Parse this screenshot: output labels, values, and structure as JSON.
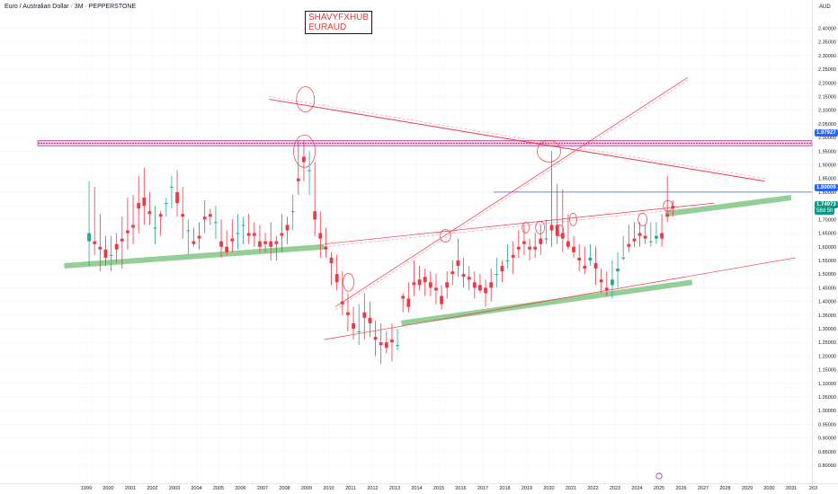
{
  "header": {
    "title": "Euro / Australian Dollar · 3M · PEPPERSTONE"
  },
  "watermark": {
    "line1": "SHAVYFXHUB",
    "line2": "EURAUD"
  },
  "axis": {
    "currency": "AUD"
  },
  "badges": {
    "level_upper": "1.97927",
    "level_mid": "1.80009",
    "last_price": "1.74973",
    "countdown": "58d 5h"
  },
  "colors": {
    "up": "#26a69a",
    "down": "#f23645",
    "resistance": "#f23645",
    "support": "#4caf50",
    "level": "#2962ff",
    "zone": "#e91e63"
  },
  "chart_data": {
    "type": "candlestick",
    "title": "Euro / Australian Dollar · 3M · PEPPERSTONE",
    "ylim": [
      0.78,
      2.44
    ],
    "y_ticks": [
      "0.80000",
      "0.85000",
      "0.90000",
      "0.95000",
      "1.00000",
      "1.05000",
      "1.10000",
      "1.15000",
      "1.20000",
      "1.25000",
      "1.30000",
      "1.35000",
      "1.40000",
      "1.45000",
      "1.50000",
      "1.55000",
      "1.60000",
      "1.65000",
      "1.70000",
      "1.75000",
      "1.80000",
      "1.85000",
      "1.90000",
      "1.95000",
      "2.00000",
      "2.05000",
      "2.10000",
      "2.15000",
      "2.20000",
      "2.25000",
      "2.30000",
      "2.35000",
      "2.40000"
    ],
    "x_ticks": [
      "1999",
      "2000",
      "2001",
      "2002",
      "2003",
      "2004",
      "2005",
      "2006",
      "2007",
      "2008",
      "2009",
      "2010",
      "2011",
      "2012",
      "2013",
      "2014",
      "2015",
      "2016",
      "2017",
      "2018",
      "2019",
      "2020",
      "2021",
      "2022",
      "2023",
      "2024",
      "2025",
      "2026",
      "2027",
      "2028",
      "2029",
      "2030",
      "2031",
      "203"
    ],
    "x_range": [
      1999.0,
      2031.2
    ],
    "candles": [
      [
        1999.0,
        1.62,
        1.84,
        1.65,
        1.53
      ],
      [
        1999.25,
        1.62,
        1.82,
        1.61,
        1.57
      ],
      [
        1999.5,
        1.6,
        1.72,
        1.59,
        1.51
      ],
      [
        1999.75,
        1.59,
        1.64,
        1.56,
        1.53
      ],
      [
        2000.0,
        1.57,
        1.64,
        1.57,
        1.51
      ],
      [
        2000.25,
        1.61,
        1.65,
        1.59,
        1.54
      ],
      [
        2000.5,
        1.63,
        1.71,
        1.62,
        1.52
      ],
      [
        2000.75,
        1.66,
        1.78,
        1.65,
        1.59
      ],
      [
        2001.0,
        1.68,
        1.79,
        1.67,
        1.61
      ],
      [
        2001.25,
        1.76,
        1.86,
        1.74,
        1.65
      ],
      [
        2001.5,
        1.78,
        1.89,
        1.75,
        1.68
      ],
      [
        2001.75,
        1.73,
        1.8,
        1.72,
        1.68
      ],
      [
        2002.0,
        1.67,
        1.75,
        1.67,
        1.61
      ],
      [
        2002.25,
        1.72,
        1.73,
        1.71,
        1.64
      ],
      [
        2002.5,
        1.76,
        1.78,
        1.76,
        1.71
      ],
      [
        2002.75,
        1.82,
        1.86,
        1.82,
        1.74
      ],
      [
        2003.0,
        1.8,
        1.88,
        1.76,
        1.71
      ],
      [
        2003.25,
        1.72,
        1.82,
        1.71,
        1.63
      ],
      [
        2003.5,
        1.66,
        1.7,
        1.66,
        1.57
      ],
      [
        2003.75,
        1.62,
        1.67,
        1.61,
        1.6
      ],
      [
        2004.0,
        1.64,
        1.69,
        1.63,
        1.59
      ],
      [
        2004.25,
        1.71,
        1.77,
        1.7,
        1.65
      ],
      [
        2004.5,
        1.72,
        1.74,
        1.71,
        1.68
      ],
      [
        2004.75,
        1.69,
        1.75,
        1.69,
        1.63
      ],
      [
        2005.0,
        1.62,
        1.7,
        1.6,
        1.56
      ],
      [
        2005.25,
        1.6,
        1.66,
        1.58,
        1.57
      ],
      [
        2005.5,
        1.63,
        1.7,
        1.62,
        1.58
      ],
      [
        2005.75,
        1.65,
        1.72,
        1.65,
        1.59
      ],
      [
        2006.0,
        1.68,
        1.71,
        1.68,
        1.61
      ],
      [
        2006.25,
        1.65,
        1.72,
        1.64,
        1.61
      ],
      [
        2006.5,
        1.65,
        1.69,
        1.64,
        1.6
      ],
      [
        2006.75,
        1.62,
        1.68,
        1.6,
        1.58
      ],
      [
        2007.0,
        1.62,
        1.65,
        1.61,
        1.58
      ],
      [
        2007.25,
        1.62,
        1.69,
        1.6,
        1.55
      ],
      [
        2007.5,
        1.62,
        1.64,
        1.61,
        1.55
      ],
      [
        2007.75,
        1.65,
        1.72,
        1.64,
        1.58
      ],
      [
        2008.0,
        1.68,
        1.71,
        1.66,
        1.61
      ],
      [
        2008.25,
        1.73,
        1.79,
        1.73,
        1.66
      ],
      [
        2008.5,
        1.85,
        1.99,
        1.84,
        1.79
      ],
      [
        2008.75,
        1.93,
        1.99,
        1.91,
        1.84
      ],
      [
        2009.0,
        1.88,
        1.95,
        1.88,
        1.79
      ],
      [
        2009.25,
        1.73,
        1.91,
        1.7,
        1.64
      ],
      [
        2009.5,
        1.65,
        1.73,
        1.63,
        1.56
      ],
      [
        2009.75,
        1.6,
        1.67,
        1.59,
        1.56
      ],
      [
        2010.0,
        1.56,
        1.58,
        1.54,
        1.46
      ],
      [
        2010.25,
        1.5,
        1.57,
        1.47,
        1.44
      ],
      [
        2010.5,
        1.4,
        1.51,
        1.39,
        1.35
      ],
      [
        2010.75,
        1.36,
        1.43,
        1.35,
        1.29
      ],
      [
        2011.0,
        1.32,
        1.38,
        1.3,
        1.26
      ],
      [
        2011.25,
        1.29,
        1.39,
        1.29,
        1.24
      ],
      [
        2011.5,
        1.36,
        1.43,
        1.34,
        1.26
      ],
      [
        2011.75,
        1.34,
        1.4,
        1.32,
        1.27
      ],
      [
        2012.0,
        1.27,
        1.33,
        1.26,
        1.2
      ],
      [
        2012.25,
        1.25,
        1.32,
        1.24,
        1.17
      ],
      [
        2012.5,
        1.25,
        1.29,
        1.23,
        1.21
      ],
      [
        2012.75,
        1.26,
        1.32,
        1.25,
        1.18
      ],
      [
        2013.0,
        1.24,
        1.3,
        1.24,
        1.22
      ],
      [
        2013.25,
        1.42,
        1.43,
        1.41,
        1.36
      ],
      [
        2013.5,
        1.41,
        1.47,
        1.38,
        1.36
      ],
      [
        2013.75,
        1.47,
        1.55,
        1.46,
        1.42
      ],
      [
        2014.0,
        1.48,
        1.53,
        1.46,
        1.44
      ],
      [
        2014.25,
        1.49,
        1.52,
        1.47,
        1.42
      ],
      [
        2014.5,
        1.47,
        1.51,
        1.45,
        1.42
      ],
      [
        2014.75,
        1.45,
        1.5,
        1.44,
        1.39
      ],
      [
        2015.0,
        1.42,
        1.46,
        1.39,
        1.37
      ],
      [
        2015.25,
        1.47,
        1.51,
        1.45,
        1.41
      ],
      [
        2015.5,
        1.51,
        1.55,
        1.5,
        1.46
      ],
      [
        2015.75,
        1.55,
        1.63,
        1.53,
        1.49
      ],
      [
        2016.0,
        1.5,
        1.56,
        1.49,
        1.45
      ],
      [
        2016.25,
        1.49,
        1.53,
        1.48,
        1.44
      ],
      [
        2016.5,
        1.47,
        1.51,
        1.45,
        1.41
      ],
      [
        2016.75,
        1.46,
        1.5,
        1.44,
        1.43
      ],
      [
        2017.0,
        1.45,
        1.48,
        1.43,
        1.38
      ],
      [
        2017.25,
        1.47,
        1.52,
        1.45,
        1.4
      ],
      [
        2017.5,
        1.5,
        1.56,
        1.5,
        1.45
      ],
      [
        2017.75,
        1.53,
        1.55,
        1.51,
        1.47
      ],
      [
        2018.0,
        1.55,
        1.61,
        1.55,
        1.52
      ],
      [
        2018.25,
        1.57,
        1.62,
        1.56,
        1.5
      ],
      [
        2018.5,
        1.6,
        1.66,
        1.59,
        1.56
      ],
      [
        2018.75,
        1.62,
        1.68,
        1.61,
        1.57
      ],
      [
        2019.0,
        1.6,
        1.63,
        1.59,
        1.55
      ],
      [
        2019.25,
        1.6,
        1.65,
        1.59,
        1.56
      ],
      [
        2019.5,
        1.63,
        1.68,
        1.61,
        1.57
      ],
      [
        2019.75,
        1.63,
        1.7,
        1.63,
        1.61
      ],
      [
        2020.0,
        1.68,
        1.95,
        1.66,
        1.6
      ],
      [
        2020.25,
        1.68,
        1.83,
        1.64,
        1.61
      ],
      [
        2020.5,
        1.65,
        1.81,
        1.63,
        1.58
      ],
      [
        2020.75,
        1.62,
        1.72,
        1.6,
        1.59
      ],
      [
        2021.0,
        1.6,
        1.64,
        1.58,
        1.56
      ],
      [
        2021.25,
        1.56,
        1.61,
        1.55,
        1.51
      ],
      [
        2021.5,
        1.53,
        1.6,
        1.52,
        1.5
      ],
      [
        2021.75,
        1.55,
        1.61,
        1.56,
        1.53
      ],
      [
        2022.0,
        1.54,
        1.6,
        1.52,
        1.46
      ],
      [
        2022.25,
        1.48,
        1.52,
        1.47,
        1.43
      ],
      [
        2022.5,
        1.45,
        1.51,
        1.44,
        1.42
      ],
      [
        2022.75,
        1.46,
        1.55,
        1.48,
        1.41
      ],
      [
        2023.0,
        1.51,
        1.58,
        1.52,
        1.45
      ],
      [
        2023.25,
        1.56,
        1.64,
        1.56,
        1.55
      ],
      [
        2023.5,
        1.61,
        1.68,
        1.6,
        1.58
      ],
      [
        2023.75,
        1.63,
        1.69,
        1.62,
        1.6
      ],
      [
        2024.0,
        1.65,
        1.69,
        1.64,
        1.6
      ],
      [
        2024.25,
        1.64,
        1.68,
        1.63,
        1.61
      ],
      [
        2024.5,
        1.62,
        1.69,
        1.62,
        1.6
      ],
      [
        2024.75,
        1.63,
        1.69,
        1.64,
        1.61
      ],
      [
        2025.0,
        1.65,
        1.72,
        1.63,
        1.6
      ],
      [
        2025.25,
        1.72,
        1.86,
        1.71,
        1.69
      ],
      [
        2025.5,
        1.75,
        1.77,
        1.74,
        1.71
      ]
    ],
    "levels": [
      {
        "name": "resistance-zone",
        "price": 1.97927
      },
      {
        "name": "horizontal-level",
        "price": 1.80009
      }
    ],
    "trendlines": [
      {
        "name": "descending-resistance",
        "from": [
          2007.3,
          2.14
        ],
        "to": [
          2029.8,
          1.84
        ]
      },
      {
        "name": "steep-ascending-line",
        "from": [
          2010.3,
          1.38
        ],
        "to": [
          2026.3,
          2.22
        ]
      },
      {
        "name": "mid-ascending-line",
        "from": [
          2009.8,
          1.61
        ],
        "to": [
          2027.5,
          1.76
        ]
      },
      {
        "name": "lower-ascending-line",
        "from": [
          2009.8,
          1.26
        ],
        "to": [
          2031.2,
          1.56
        ]
      }
    ],
    "support_channels": [
      {
        "name": "support-channel-1",
        "from": [
          1998.0,
          1.53
        ],
        "to": [
          2009.8,
          1.6
        ]
      },
      {
        "name": "support-channel-2",
        "from": [
          2013.3,
          1.32
        ],
        "to": [
          2026.5,
          1.47
        ]
      },
      {
        "name": "support-channel-3",
        "from": [
          2025.3,
          1.72
        ],
        "to": [
          2031.0,
          1.78
        ]
      }
    ]
  }
}
